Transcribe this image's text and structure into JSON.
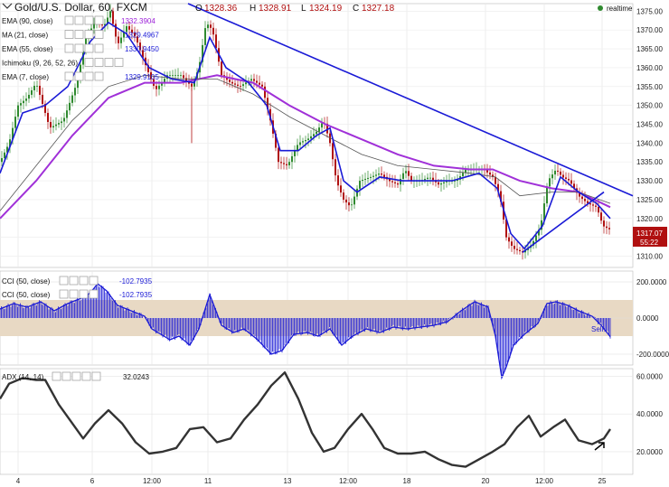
{
  "header": {
    "symbol": "Gold/U.S. Dollar, 60, FXCM",
    "o_label": "O",
    "o": "1328.36",
    "h_label": "H",
    "h": "1328.91",
    "l_label": "L",
    "l": "1324.19",
    "c_label": "C",
    "c": "1327.18",
    "realtime": "realtime"
  },
  "indicators": [
    {
      "label": "EMA (90, close)",
      "value": "1332.3904",
      "color": "#9b1fd8"
    },
    {
      "label": "MA (21, close)",
      "value": "1329.4967",
      "color": "#1a1ad6"
    },
    {
      "label": "EMA (55, close)",
      "value": "1330.9450",
      "color": "#1a1ad6"
    },
    {
      "label": "Ichimoku (9, 26, 52, 26)",
      "value": "",
      "color": "#1a1ad6"
    },
    {
      "label": "EMA (7, close)",
      "value": "1329.9105",
      "color": "#1a1ad6"
    }
  ],
  "price_tags": {
    "last": "1317.07",
    "countdown": "55:22"
  },
  "cci": {
    "label": "CCI (50, close)",
    "label2": "CCI (50, close)",
    "value": "-102.7935",
    "value2": "-102.7935",
    "signal": "Sell"
  },
  "adx": {
    "label": "ADX (14, 14)",
    "value": "32.0243"
  },
  "colors": {
    "up": "#2f8a2f",
    "down": "#b01010",
    "ema90": "#a030d8",
    "blue": "#1a1ad6",
    "cci_band": "#e8d9c4",
    "adx": "#333333"
  },
  "chart_data": [
    {
      "type": "candlestick",
      "title": "Gold/U.S. Dollar, 60, FXCM",
      "y_ticks": [
        "1310.00",
        "1315.00",
        "1320.00",
        "1325.00",
        "1330.00",
        "1335.00",
        "1340.00",
        "1345.00",
        "1350.00",
        "1355.00",
        "1360.00",
        "1365.00",
        "1370.00",
        "1375.00"
      ],
      "ylim": [
        1307,
        1377
      ],
      "x_ticks": [
        "4",
        "6",
        "12:00",
        "11",
        "13",
        "12:00",
        "18",
        "20",
        "12:00",
        "25"
      ],
      "close_path": [
        [
          0,
          1335
        ],
        [
          10,
          1340
        ],
        [
          20,
          1350
        ],
        [
          30,
          1352
        ],
        [
          40,
          1356
        ],
        [
          55,
          1344
        ],
        [
          70,
          1346
        ],
        [
          85,
          1356
        ],
        [
          95,
          1368
        ],
        [
          105,
          1372
        ],
        [
          115,
          1371
        ],
        [
          122,
          1375
        ],
        [
          130,
          1366
        ],
        [
          140,
          1371
        ],
        [
          150,
          1368
        ],
        [
          162,
          1360
        ],
        [
          172,
          1354
        ],
        [
          185,
          1358
        ],
        [
          200,
          1358
        ],
        [
          212,
          1355
        ],
        [
          220,
          1360
        ],
        [
          228,
          1372
        ],
        [
          235,
          1370
        ],
        [
          245,
          1358
        ],
        [
          255,
          1356
        ],
        [
          265,
          1355
        ],
        [
          278,
          1357
        ],
        [
          290,
          1355
        ],
        [
          300,
          1345
        ],
        [
          308,
          1335
        ],
        [
          318,
          1334
        ],
        [
          330,
          1340
        ],
        [
          340,
          1341
        ],
        [
          350,
          1343
        ],
        [
          358,
          1346
        ],
        [
          365,
          1340
        ],
        [
          372,
          1330
        ],
        [
          380,
          1325
        ],
        [
          388,
          1323
        ],
        [
          398,
          1330
        ],
        [
          410,
          1331
        ],
        [
          420,
          1332
        ],
        [
          430,
          1330
        ],
        [
          440,
          1329
        ],
        [
          448,
          1333
        ],
        [
          455,
          1330
        ],
        [
          465,
          1330
        ],
        [
          475,
          1331
        ],
        [
          485,
          1329
        ],
        [
          495,
          1330
        ],
        [
          505,
          1330
        ],
        [
          515,
          1333
        ],
        [
          525,
          1333
        ],
        [
          535,
          1333
        ],
        [
          545,
          1331
        ],
        [
          553,
          1326
        ],
        [
          560,
          1315
        ],
        [
          568,
          1312
        ],
        [
          578,
          1311
        ],
        [
          588,
          1313
        ],
        [
          598,
          1318
        ],
        [
          606,
          1330
        ],
        [
          615,
          1333
        ],
        [
          622,
          1331
        ],
        [
          630,
          1330
        ],
        [
          640,
          1326
        ],
        [
          650,
          1324
        ],
        [
          660,
          1323
        ],
        [
          667,
          1318
        ],
        [
          675,
          1317
        ]
      ],
      "ema90_path": [
        [
          0,
          1320
        ],
        [
          40,
          1330
        ],
        [
          80,
          1342
        ],
        [
          120,
          1352
        ],
        [
          160,
          1356
        ],
        [
          200,
          1356
        ],
        [
          240,
          1358
        ],
        [
          280,
          1356
        ],
        [
          320,
          1350
        ],
        [
          360,
          1345
        ],
        [
          400,
          1341
        ],
        [
          440,
          1337
        ],
        [
          480,
          1334
        ],
        [
          520,
          1333
        ],
        [
          545,
          1333
        ],
        [
          575,
          1330
        ],
        [
          610,
          1328
        ],
        [
          640,
          1327
        ],
        [
          675,
          1323
        ]
      ],
      "ema55_path": [
        [
          0,
          1322
        ],
        [
          40,
          1334
        ],
        [
          80,
          1346
        ],
        [
          120,
          1355
        ],
        [
          160,
          1358
        ],
        [
          200,
          1357
        ],
        [
          240,
          1357
        ],
        [
          280,
          1353
        ],
        [
          320,
          1347
        ],
        [
          360,
          1342
        ],
        [
          400,
          1337
        ],
        [
          440,
          1334
        ],
        [
          480,
          1333
        ],
        [
          520,
          1332
        ],
        [
          548,
          1331
        ],
        [
          575,
          1326
        ],
        [
          610,
          1327
        ],
        [
          640,
          1327
        ],
        [
          675,
          1324
        ]
      ],
      "ema7_path": [
        [
          0,
          1332
        ],
        [
          25,
          1348
        ],
        [
          50,
          1350
        ],
        [
          75,
          1355
        ],
        [
          100,
          1367
        ],
        [
          120,
          1372
        ],
        [
          140,
          1369
        ],
        [
          165,
          1360
        ],
        [
          190,
          1357
        ],
        [
          215,
          1356
        ],
        [
          232,
          1368
        ],
        [
          250,
          1360
        ],
        [
          275,
          1356
        ],
        [
          295,
          1350
        ],
        [
          310,
          1338
        ],
        [
          330,
          1338
        ],
        [
          350,
          1342
        ],
        [
          365,
          1344
        ],
        [
          380,
          1330
        ],
        [
          395,
          1327
        ],
        [
          420,
          1331
        ],
        [
          445,
          1330
        ],
        [
          470,
          1330
        ],
        [
          500,
          1330
        ],
        [
          530,
          1332
        ],
        [
          550,
          1328
        ],
        [
          565,
          1316
        ],
        [
          580,
          1312
        ],
        [
          600,
          1318
        ],
        [
          620,
          1331
        ],
        [
          640,
          1327
        ],
        [
          660,
          1324
        ],
        [
          675,
          1320
        ]
      ],
      "trendlines": [
        {
          "from": [
            208,
            1377
          ],
          "to": [
            700,
            1326
          ]
        },
        {
          "from": [
            578,
            1311
          ],
          "to": [
            668,
            1327
          ]
        }
      ]
    },
    {
      "type": "bar",
      "title": "CCI (50, close)",
      "y_ticks": [
        "200.0000",
        "0.0000",
        "-200.0000"
      ],
      "ylim": [
        -260,
        260
      ],
      "band": [
        -100,
        100
      ],
      "points": [
        [
          0,
          50
        ],
        [
          15,
          80
        ],
        [
          30,
          60
        ],
        [
          45,
          90
        ],
        [
          60,
          40
        ],
        [
          75,
          80
        ],
        [
          90,
          110
        ],
        [
          100,
          140
        ],
        [
          108,
          190
        ],
        [
          118,
          150
        ],
        [
          130,
          70
        ],
        [
          145,
          40
        ],
        [
          160,
          10
        ],
        [
          168,
          -60
        ],
        [
          178,
          -90
        ],
        [
          188,
          -120
        ],
        [
          198,
          -100
        ],
        [
          210,
          -150
        ],
        [
          220,
          -60
        ],
        [
          232,
          130
        ],
        [
          245,
          -40
        ],
        [
          258,
          -80
        ],
        [
          270,
          -60
        ],
        [
          285,
          -120
        ],
        [
          300,
          -200
        ],
        [
          312,
          -180
        ],
        [
          325,
          -90
        ],
        [
          340,
          -80
        ],
        [
          352,
          -100
        ],
        [
          365,
          -60
        ],
        [
          378,
          -150
        ],
        [
          390,
          -100
        ],
        [
          405,
          -60
        ],
        [
          420,
          -80
        ],
        [
          435,
          -50
        ],
        [
          450,
          -60
        ],
        [
          465,
          -50
        ],
        [
          480,
          -40
        ],
        [
          495,
          -20
        ],
        [
          510,
          40
        ],
        [
          525,
          90
        ],
        [
          540,
          60
        ],
        [
          548,
          -100
        ],
        [
          555,
          -330
        ],
        [
          560,
          -270
        ],
        [
          568,
          -150
        ],
        [
          580,
          -90
        ],
        [
          595,
          -30
        ],
        [
          605,
          80
        ],
        [
          615,
          90
        ],
        [
          628,
          70
        ],
        [
          640,
          40
        ],
        [
          655,
          10
        ],
        [
          665,
          -40
        ],
        [
          675,
          -102.8
        ]
      ]
    },
    {
      "type": "line",
      "title": "ADX (14, 14)",
      "y_ticks": [
        "60.0000",
        "40.0000",
        "20.0000"
      ],
      "ylim": [
        8,
        64
      ],
      "points": [
        [
          0,
          48
        ],
        [
          10,
          56
        ],
        [
          25,
          59
        ],
        [
          40,
          58
        ],
        [
          50,
          58
        ],
        [
          65,
          45
        ],
        [
          80,
          35
        ],
        [
          92,
          27
        ],
        [
          105,
          35
        ],
        [
          120,
          42
        ],
        [
          135,
          35
        ],
        [
          150,
          25
        ],
        [
          165,
          19
        ],
        [
          180,
          20
        ],
        [
          195,
          22
        ],
        [
          210,
          32
        ],
        [
          225,
          33
        ],
        [
          240,
          25
        ],
        [
          255,
          27
        ],
        [
          270,
          37
        ],
        [
          285,
          45
        ],
        [
          300,
          55
        ],
        [
          315,
          62
        ],
        [
          330,
          48
        ],
        [
          345,
          30
        ],
        [
          358,
          20
        ],
        [
          370,
          22
        ],
        [
          385,
          32
        ],
        [
          400,
          40
        ],
        [
          412,
          32
        ],
        [
          425,
          22
        ],
        [
          440,
          19
        ],
        [
          455,
          19
        ],
        [
          470,
          20
        ],
        [
          485,
          16
        ],
        [
          500,
          13
        ],
        [
          515,
          12
        ],
        [
          530,
          16
        ],
        [
          545,
          20
        ],
        [
          558,
          24
        ],
        [
          572,
          33
        ],
        [
          585,
          39
        ],
        [
          598,
          28
        ],
        [
          612,
          33
        ],
        [
          625,
          37
        ],
        [
          640,
          26
        ],
        [
          655,
          24
        ],
        [
          668,
          27
        ],
        [
          675,
          32.0
        ]
      ]
    }
  ]
}
